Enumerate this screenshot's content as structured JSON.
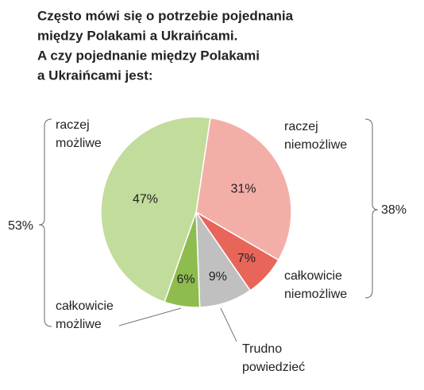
{
  "chart_data": {
    "type": "pie",
    "title": [
      "Często mówi się o potrzebie pojednania",
      "między Polakami a Ukraińcami.",
      "A czy pojednanie między Polakami",
      "a Ukraińcami jest:"
    ],
    "categories": [
      "raczej niemożliwe",
      "całkowicie niemożliwe",
      "Trudno powiedzieć",
      "całkowicie możliwe",
      "raczej możliwe"
    ],
    "values": [
      31,
      7,
      9,
      6,
      47
    ],
    "value_labels": [
      "31%",
      "7%",
      "9%",
      "6%",
      "47%"
    ],
    "colors": [
      "#f4aea8",
      "#e8655a",
      "#c0c0c0",
      "#8fbc4f",
      "#c2dc9c"
    ],
    "groups": {
      "values": [
        53,
        38
      ],
      "value_labels": [
        "53%",
        "38%"
      ]
    }
  }
}
